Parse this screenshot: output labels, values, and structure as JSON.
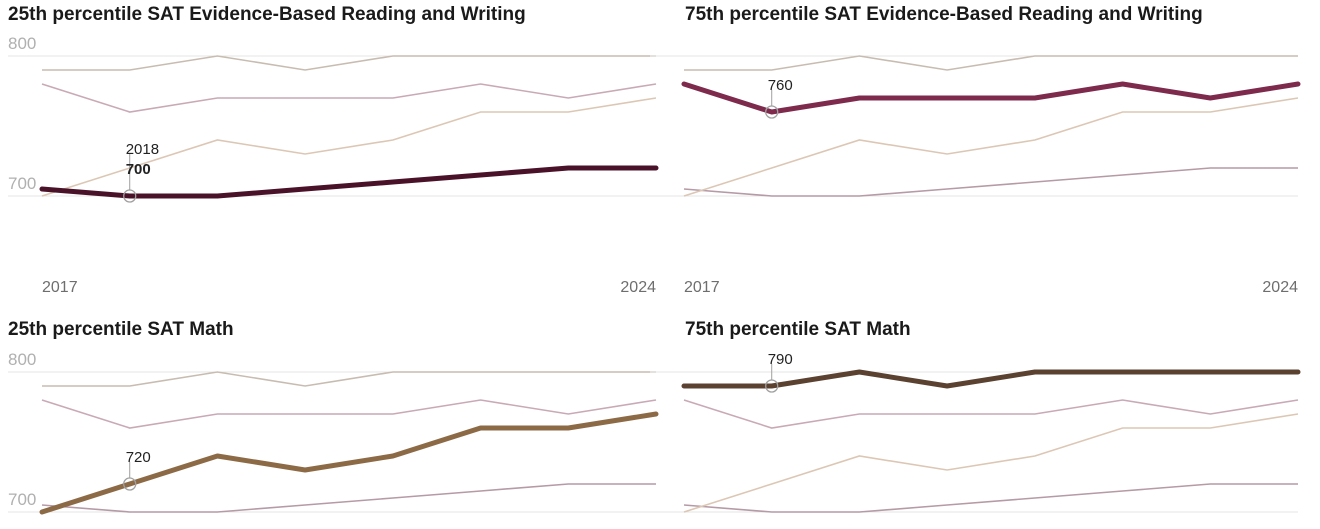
{
  "chart_data": [
    {
      "type": "line",
      "title": "25th percentile SAT Evidence-Based Reading and Writing",
      "x": [
        2017,
        2018,
        2019,
        2020,
        2021,
        2022,
        2023,
        2024
      ],
      "x_tick_labels": [
        "2017",
        "2024"
      ],
      "y_tick_labels": [
        "800",
        "700"
      ],
      "ylim": [
        690,
        800
      ],
      "highlight": "ebrw25",
      "annotation": {
        "x": 2018,
        "year_label": "2018",
        "value_label": "700"
      },
      "series": [
        {
          "name": "ebrw25",
          "values": [
            705,
            700,
            700,
            705,
            710,
            715,
            720,
            720
          ]
        },
        {
          "name": "ebrw75",
          "values": [
            780,
            760,
            770,
            770,
            770,
            780,
            770,
            780
          ]
        },
        {
          "name": "math25",
          "values": [
            700,
            720,
            740,
            730,
            740,
            760,
            760,
            770
          ]
        },
        {
          "name": "math75",
          "values": [
            790,
            790,
            800,
            790,
            800,
            800,
            800,
            800
          ]
        }
      ]
    },
    {
      "type": "line",
      "title": "75th percentile SAT Evidence-Based Reading and Writing",
      "x": [
        2017,
        2018,
        2019,
        2020,
        2021,
        2022,
        2023,
        2024
      ],
      "x_tick_labels": [
        "2017",
        "2024"
      ],
      "y_tick_labels": [],
      "ylim": [
        690,
        800
      ],
      "highlight": "ebrw75",
      "annotation": {
        "x": 2018,
        "year_label": "",
        "value_label": "760"
      },
      "series": [
        {
          "name": "ebrw25",
          "values": [
            705,
            700,
            700,
            705,
            710,
            715,
            720,
            720
          ]
        },
        {
          "name": "ebrw75",
          "values": [
            780,
            760,
            770,
            770,
            770,
            780,
            770,
            780
          ]
        },
        {
          "name": "math25",
          "values": [
            700,
            720,
            740,
            730,
            740,
            760,
            760,
            770
          ]
        },
        {
          "name": "math75",
          "values": [
            790,
            790,
            800,
            790,
            800,
            800,
            800,
            800
          ]
        }
      ]
    },
    {
      "type": "line",
      "title": "25th percentile SAT Math",
      "x": [
        2017,
        2018,
        2019,
        2020,
        2021,
        2022,
        2023,
        2024
      ],
      "x_tick_labels": [],
      "y_tick_labels": [
        "800",
        "700"
      ],
      "ylim": [
        700,
        800
      ],
      "highlight": "math25",
      "annotation": {
        "x": 2018,
        "year_label": "",
        "value_label": "720"
      },
      "series": [
        {
          "name": "ebrw25",
          "values": [
            705,
            700,
            700,
            705,
            710,
            715,
            720,
            720
          ]
        },
        {
          "name": "ebrw75",
          "values": [
            780,
            760,
            770,
            770,
            770,
            780,
            770,
            780
          ]
        },
        {
          "name": "math25",
          "values": [
            700,
            720,
            740,
            730,
            740,
            760,
            760,
            770
          ]
        },
        {
          "name": "math75",
          "values": [
            790,
            790,
            800,
            790,
            800,
            800,
            800,
            800
          ]
        }
      ]
    },
    {
      "type": "line",
      "title": "75th percentile SAT Math",
      "x": [
        2017,
        2018,
        2019,
        2020,
        2021,
        2022,
        2023,
        2024
      ],
      "x_tick_labels": [],
      "y_tick_labels": [],
      "ylim": [
        700,
        800
      ],
      "highlight": "math75",
      "annotation": {
        "x": 2018,
        "year_label": "",
        "value_label": "790"
      },
      "series": [
        {
          "name": "ebrw25",
          "values": [
            705,
            700,
            700,
            705,
            710,
            715,
            720,
            720
          ]
        },
        {
          "name": "ebrw75",
          "values": [
            780,
            760,
            770,
            770,
            770,
            780,
            770,
            780
          ]
        },
        {
          "name": "math25",
          "values": [
            700,
            720,
            740,
            730,
            740,
            760,
            760,
            770
          ]
        },
        {
          "name": "math75",
          "values": [
            790,
            790,
            800,
            790,
            800,
            800,
            800,
            800
          ]
        }
      ]
    }
  ],
  "colors": {
    "ebrw25": "#4a1228",
    "ebrw75": "#7d2a4c",
    "math25": "#8c6a46",
    "math75": "#5a4130",
    "ebrw25_light": "#b69aa6",
    "ebrw75_light": "#c9a9b6",
    "math25_light": "#dcc7b4",
    "math75_light": "#c8bcb1",
    "grid": "#e4e4e4"
  }
}
